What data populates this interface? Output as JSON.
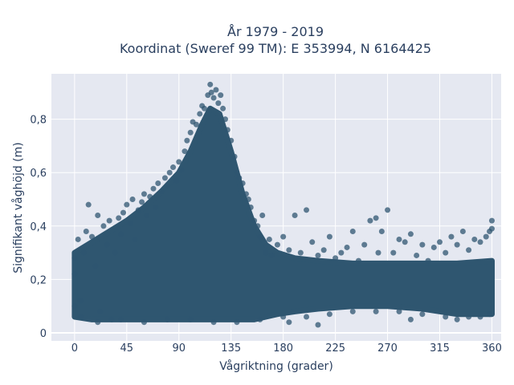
{
  "chart_data": {
    "type": "scatter",
    "title": "År 1979 - 2019",
    "subtitle": "Koordinat (Sweref 99 TM): E 353994, N 6164425",
    "xlabel": "Vågriktning (grader)",
    "ylabel": "Signifikant våghöjd (m)",
    "xlim": [
      -20,
      368
    ],
    "ylim": [
      -0.03,
      0.97
    ],
    "xticks": [
      0,
      45,
      90,
      135,
      180,
      225,
      270,
      315,
      360
    ],
    "xtick_labels": [
      "0",
      "45",
      "90",
      "135",
      "180",
      "225",
      "270",
      "315",
      "360"
    ],
    "yticks": [
      0,
      0.2,
      0.4,
      0.6,
      0.8
    ],
    "ytick_labels": [
      "0",
      "0,2",
      "0,4",
      "0,6",
      "0,8"
    ],
    "grid": true,
    "colors": {
      "marker": "#2f5670",
      "plot_bg": "#e5e8f1",
      "grid": "#ffffff",
      "text": "#2a3f5f"
    },
    "series": [
      {
        "points": [
          [
            0,
            0.1
          ],
          [
            0,
            0.22
          ],
          [
            0,
            0.28
          ],
          [
            3,
            0.35
          ],
          [
            5,
            0.12
          ],
          [
            8,
            0.3
          ],
          [
            10,
            0.38
          ],
          [
            12,
            0.48
          ],
          [
            15,
            0.36
          ],
          [
            18,
            0.25
          ],
          [
            20,
            0.44
          ],
          [
            22,
            0.08
          ],
          [
            25,
            0.4
          ],
          [
            28,
            0.33
          ],
          [
            30,
            0.42
          ],
          [
            32,
            0.05
          ],
          [
            35,
            0.3
          ],
          [
            38,
            0.43
          ],
          [
            40,
            0.37
          ],
          [
            42,
            0.45
          ],
          [
            45,
            0.48
          ],
          [
            48,
            0.41
          ],
          [
            50,
            0.5
          ],
          [
            52,
            0.35
          ],
          [
            55,
            0.46
          ],
          [
            58,
            0.49
          ],
          [
            60,
            0.52
          ],
          [
            62,
            0.44
          ],
          [
            65,
            0.51
          ],
          [
            68,
            0.54
          ],
          [
            70,
            0.47
          ],
          [
            72,
            0.56
          ],
          [
            75,
            0.53
          ],
          [
            78,
            0.58
          ],
          [
            80,
            0.55
          ],
          [
            82,
            0.6
          ],
          [
            85,
            0.62
          ],
          [
            88,
            0.57
          ],
          [
            90,
            0.64
          ],
          [
            92,
            0.61
          ],
          [
            95,
            0.68
          ],
          [
            97,
            0.72
          ],
          [
            100,
            0.75
          ],
          [
            102,
            0.79
          ],
          [
            105,
            0.78
          ],
          [
            108,
            0.82
          ],
          [
            110,
            0.85
          ],
          [
            112,
            0.84
          ],
          [
            115,
            0.89
          ],
          [
            117,
            0.93
          ],
          [
            118,
            0.9
          ],
          [
            120,
            0.88
          ],
          [
            122,
            0.91
          ],
          [
            124,
            0.86
          ],
          [
            126,
            0.89
          ],
          [
            128,
            0.84
          ],
          [
            130,
            0.8
          ],
          [
            132,
            0.76
          ],
          [
            135,
            0.72
          ],
          [
            138,
            0.66
          ],
          [
            140,
            0.6
          ],
          [
            142,
            0.58
          ],
          [
            145,
            0.56
          ],
          [
            148,
            0.52
          ],
          [
            150,
            0.5
          ],
          [
            152,
            0.47
          ],
          [
            155,
            0.42
          ],
          [
            158,
            0.4
          ],
          [
            160,
            0.36
          ],
          [
            162,
            0.44
          ],
          [
            165,
            0.3
          ],
          [
            168,
            0.35
          ],
          [
            170,
            0.29
          ],
          [
            175,
            0.33
          ],
          [
            180,
            0.36
          ],
          [
            185,
            0.31
          ],
          [
            190,
            0.44
          ],
          [
            195,
            0.3
          ],
          [
            200,
            0.46
          ],
          [
            205,
            0.34
          ],
          [
            210,
            0.29
          ],
          [
            215,
            0.31
          ],
          [
            220,
            0.36
          ],
          [
            225,
            0.28
          ],
          [
            230,
            0.3
          ],
          [
            235,
            0.32
          ],
          [
            240,
            0.38
          ],
          [
            245,
            0.27
          ],
          [
            250,
            0.33
          ],
          [
            255,
            0.42
          ],
          [
            260,
            0.43
          ],
          [
            262,
            0.3
          ],
          [
            265,
            0.38
          ],
          [
            270,
            0.46
          ],
          [
            275,
            0.3
          ],
          [
            280,
            0.35
          ],
          [
            285,
            0.34
          ],
          [
            290,
            0.37
          ],
          [
            295,
            0.29
          ],
          [
            300,
            0.33
          ],
          [
            305,
            0.27
          ],
          [
            310,
            0.32
          ],
          [
            315,
            0.34
          ],
          [
            320,
            0.3
          ],
          [
            325,
            0.36
          ],
          [
            330,
            0.33
          ],
          [
            335,
            0.38
          ],
          [
            340,
            0.31
          ],
          [
            345,
            0.35
          ],
          [
            350,
            0.34
          ],
          [
            355,
            0.36
          ],
          [
            358,
            0.38
          ],
          [
            360,
            0.39
          ],
          [
            360,
            0.42
          ],
          [
            5,
            0.06
          ],
          [
            20,
            0.04
          ],
          [
            40,
            0.05
          ],
          [
            60,
            0.04
          ],
          [
            80,
            0.05
          ],
          [
            100,
            0.05
          ],
          [
            120,
            0.04
          ],
          [
            140,
            0.04
          ],
          [
            160,
            0.05
          ],
          [
            180,
            0.06
          ],
          [
            200,
            0.06
          ],
          [
            220,
            0.07
          ],
          [
            240,
            0.08
          ],
          [
            260,
            0.08
          ],
          [
            280,
            0.08
          ],
          [
            300,
            0.07
          ],
          [
            320,
            0.06
          ],
          [
            340,
            0.06
          ],
          [
            358,
            0.07
          ],
          [
            185,
            0.04
          ],
          [
            210,
            0.03
          ],
          [
            290,
            0.05
          ],
          [
            330,
            0.05
          ],
          [
            350,
            0.06
          ]
        ]
      }
    ],
    "dense_band": [
      [
        0,
        0.06,
        0.3
      ],
      [
        15,
        0.05,
        0.34
      ],
      [
        30,
        0.05,
        0.38
      ],
      [
        45,
        0.05,
        0.42
      ],
      [
        60,
        0.05,
        0.47
      ],
      [
        75,
        0.05,
        0.53
      ],
      [
        90,
        0.05,
        0.6
      ],
      [
        100,
        0.05,
        0.68
      ],
      [
        110,
        0.05,
        0.78
      ],
      [
        117,
        0.05,
        0.84
      ],
      [
        125,
        0.05,
        0.82
      ],
      [
        135,
        0.05,
        0.68
      ],
      [
        145,
        0.05,
        0.52
      ],
      [
        155,
        0.05,
        0.4
      ],
      [
        165,
        0.06,
        0.33
      ],
      [
        175,
        0.07,
        0.3
      ],
      [
        190,
        0.08,
        0.28
      ],
      [
        210,
        0.09,
        0.27
      ],
      [
        240,
        0.1,
        0.26
      ],
      [
        270,
        0.1,
        0.26
      ],
      [
        300,
        0.09,
        0.26
      ],
      [
        330,
        0.07,
        0.26
      ],
      [
        360,
        0.07,
        0.27
      ]
    ]
  }
}
